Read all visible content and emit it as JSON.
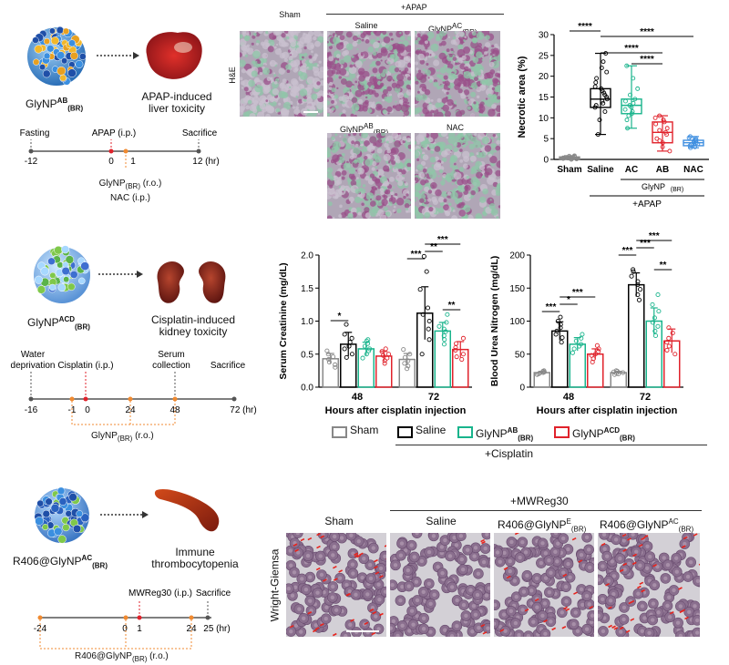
{
  "row1": {
    "np_label": "GlyNP",
    "np_sup": "AB",
    "np_sub": "(BR)",
    "organ_label_l1": "APAP-induced",
    "organ_label_l2": "liver toxicity",
    "timeline": {
      "events": [
        "Fasting",
        "APAP (i.p.)",
        "Sacrifice"
      ],
      "ticks": [
        "-12",
        "0",
        "1",
        "12 (hr)"
      ],
      "below_l1_a": "GlyNP",
      "below_l1_sub": "(BR)",
      "below_l1_b": " (r.o.)",
      "below_l2": "NAC (i.p.)"
    },
    "he": {
      "row_label": "H&E",
      "plus_label": "+APAP",
      "top_titles": [
        "Sham",
        "Saline"
      ],
      "glyac_a": "GlyNP",
      "glyac_sup": "AC",
      "glyac_sub": "(BR)",
      "glyab_a": "GlyNP",
      "glyab_sup": "AB",
      "glyab_sub": "(BR)",
      "nac": "NAC"
    },
    "chart": {
      "ylabel": "Necrotic area (%)",
      "categories": [
        "Sham",
        "Saline",
        "AC",
        "AB",
        "NAC"
      ],
      "group_label_a": "GlyNP",
      "group_label_sub": "(BR)",
      "plus_label": "+APAP",
      "significance": [
        "****",
        "****",
        "****",
        "****"
      ],
      "colors": [
        "#888888",
        "#000000",
        "#19b48c",
        "#e0222b",
        "#3f8fe0"
      ]
    }
  },
  "row2": {
    "np_label": "GlyNP",
    "np_sup": "ACD",
    "np_sub": "(BR)",
    "organ_label_l1": "Cisplatin-induced",
    "organ_label_l2": "kidney toxicity",
    "timeline": {
      "events": [
        "Water",
        "deprivation",
        "Cisplatin (i.p.)",
        "Serum",
        "collection",
        "Sacrifice"
      ],
      "ticks": [
        "-16",
        "-1",
        "0",
        "24",
        "48",
        "72 (hr)"
      ],
      "below_a": "GlyNP",
      "below_sub": "(BR)",
      "below_b": " (r.o.)"
    },
    "legend": {
      "items": [
        "Sham",
        "Saline"
      ],
      "ab_a": "GlyNP",
      "ab_sup": "AB",
      "ab_sub": "(BR)",
      "acd_a": "GlyNP",
      "acd_sup": "ACD",
      "acd_sub": "(BR)",
      "plus_label": "+Cisplatin"
    }
  },
  "row3": {
    "np_label": "R406@GlyNP",
    "np_sup": "AC",
    "np_sub": "(BR)",
    "organ_label_l1": "Immune",
    "organ_label_l2": "thrombocytopenia",
    "timeline": {
      "events": [
        "MWReg30 (i.p.)",
        "Sacrifice"
      ],
      "ticks": [
        "-24",
        "0",
        "1",
        "24",
        "25 (hr)"
      ],
      "below_a": "R406@GlyNP",
      "below_sub": "(BR)",
      "below_b": " (r.o.)"
    },
    "smear": {
      "row_label": "Wright-Giemsa",
      "plus_label": "+MWReg30",
      "titles": [
        "Sham",
        "Saline"
      ],
      "e_a": "R406@GlyNP",
      "e_sup": "E",
      "e_sub": "(BR)",
      "ac_a": "R406@GlyNP",
      "ac_sup": "AC",
      "ac_sub": "(BR)"
    }
  },
  "chart_data": [
    {
      "type": "box",
      "ylabel": "Necrotic area (%)",
      "ylim": [
        0,
        30
      ],
      "yticks": [
        0,
        5,
        10,
        15,
        20,
        25,
        30
      ],
      "categories": [
        "Sham",
        "Saline",
        "AC",
        "AB",
        "NAC"
      ],
      "boxes": [
        {
          "min": 0.0,
          "q1": 0.1,
          "median": 0.3,
          "q3": 0.6,
          "max": 0.9
        },
        {
          "min": 6.0,
          "q1": 12.5,
          "median": 14.5,
          "q3": 17.0,
          "max": 25.5
        },
        {
          "min": 7.5,
          "q1": 11.0,
          "median": 13.0,
          "q3": 14.5,
          "max": 22.5
        },
        {
          "min": 2.0,
          "q1": 4.0,
          "median": 6.5,
          "q3": 9.0,
          "max": 10.5
        },
        {
          "min": 2.8,
          "q1": 3.3,
          "median": 4.0,
          "q3": 4.6,
          "max": 5.5
        }
      ],
      "points": [
        [
          0.0,
          0.1,
          0.2,
          0.3,
          0.3,
          0.4,
          0.5,
          0.6,
          0.7,
          0.8,
          0.9,
          0.2
        ],
        [
          6.0,
          9.5,
          11.5,
          12.5,
          13.0,
          13.5,
          14.0,
          14.5,
          15.0,
          15.5,
          16.0,
          16.5,
          17.0,
          17.5,
          18.5,
          19.5,
          21.0,
          22.0,
          23.5,
          25.5
        ],
        [
          7.5,
          9.5,
          10.5,
          11.0,
          11.5,
          12.0,
          12.5,
          13.0,
          13.5,
          14.0,
          14.5,
          15.5,
          17.0,
          19.5,
          22.5
        ],
        [
          2.0,
          3.0,
          4.0,
          4.5,
          5.0,
          6.0,
          6.5,
          7.0,
          7.5,
          8.5,
          9.0,
          9.5,
          10.0,
          10.5
        ],
        [
          2.8,
          3.0,
          3.3,
          3.5,
          3.7,
          4.0,
          4.1,
          4.3,
          4.5,
          4.6,
          4.9,
          5.2,
          5.5
        ]
      ],
      "significance": [
        {
          "from": 0,
          "to": 1,
          "label": "****"
        },
        {
          "from": 1,
          "to": 4,
          "label": "****"
        },
        {
          "from": 1,
          "to": 3,
          "label": "****"
        },
        {
          "from": 2,
          "to": 3,
          "label": "****"
        }
      ]
    },
    {
      "type": "bar",
      "xlabel": "Hours after cisplatin injection",
      "ylabel": "Serum Creatinine (mg/dL)",
      "ylim": [
        0.0,
        2.0
      ],
      "yticks": [
        "0.0",
        "0.5",
        "1.0",
        "1.5",
        "2.0"
      ],
      "categories": [
        "48",
        "72"
      ],
      "series": [
        {
          "name": "Sham",
          "values": [
            0.43,
            0.42
          ],
          "errors": [
            0.08,
            0.09
          ],
          "points": [
            [
              0.3,
              0.34,
              0.38,
              0.42,
              0.46,
              0.5,
              0.55
            ],
            [
              0.28,
              0.32,
              0.36,
              0.4,
              0.45,
              0.5,
              0.57
            ]
          ]
        },
        {
          "name": "Saline",
          "values": [
            0.65,
            1.12
          ],
          "errors": [
            0.18,
            0.4
          ],
          "points": [
            [
              0.45,
              0.5,
              0.58,
              0.62,
              0.68,
              0.74,
              0.8,
              0.95
            ],
            [
              0.5,
              0.72,
              0.88,
              1.0,
              1.1,
              1.2,
              1.48,
              1.75,
              1.98
            ]
          ]
        },
        {
          "name": "GlyNP AB (BR)",
          "values": [
            0.58,
            0.85
          ],
          "errors": [
            0.1,
            0.13
          ],
          "points": [
            [
              0.44,
              0.5,
              0.55,
              0.58,
              0.62,
              0.66,
              0.7,
              0.72
            ],
            [
              0.65,
              0.72,
              0.78,
              0.84,
              0.88,
              0.92,
              0.98,
              1.1
            ]
          ]
        },
        {
          "name": "GlyNP ACD (BR)",
          "values": [
            0.47,
            0.57
          ],
          "errors": [
            0.07,
            0.12
          ],
          "points": [
            [
              0.36,
              0.4,
              0.44,
              0.48,
              0.5,
              0.54,
              0.58
            ],
            [
              0.42,
              0.46,
              0.5,
              0.56,
              0.6,
              0.66,
              0.74
            ]
          ]
        }
      ],
      "significance": [
        {
          "group": 0,
          "from": 0,
          "to": 1,
          "label": "*"
        },
        {
          "group": 1,
          "from": 0,
          "to": 1,
          "label": "***"
        },
        {
          "group": 1,
          "from": 1,
          "to": 2,
          "label": "**"
        },
        {
          "group": 1,
          "from": 1,
          "to": 3,
          "label": "***"
        },
        {
          "group": 1,
          "from": 2,
          "to": 3,
          "label": "**"
        }
      ]
    },
    {
      "type": "bar",
      "xlabel": "Hours after cisplatin injection",
      "ylabel": "Blood Urea Nitrogen (mg/dL)",
      "ylim": [
        0,
        200
      ],
      "yticks": [
        "0",
        "50",
        "100",
        "150",
        "200"
      ],
      "categories": [
        "48",
        "72"
      ],
      "series": [
        {
          "name": "Sham",
          "values": [
            22,
            22
          ],
          "errors": [
            2,
            2
          ],
          "points": [
            [
              19,
              20,
              21,
              22,
              23,
              24,
              25
            ],
            [
              19,
              20,
              21,
              22,
              23,
              24,
              25
            ]
          ]
        },
        {
          "name": "Saline",
          "values": [
            85,
            155
          ],
          "errors": [
            14,
            18
          ],
          "points": [
            [
              68,
              75,
              80,
              85,
              90,
              95,
              100,
              106
            ],
            [
              132,
              140,
              148,
              155,
              160,
              168,
              175,
              178
            ]
          ]
        },
        {
          "name": "GlyNP AB (BR)",
          "values": [
            65,
            100
          ],
          "errors": [
            10,
            20
          ],
          "points": [
            [
              52,
              58,
              62,
              65,
              70,
              74,
              80
            ],
            [
              78,
              85,
              92,
              98,
              105,
              115,
              125,
              140
            ]
          ]
        },
        {
          "name": "GlyNP ACD (BR)",
          "values": [
            50,
            70
          ],
          "errors": [
            8,
            18
          ],
          "points": [
            [
              38,
              43,
              48,
              50,
              54,
              58,
              63
            ],
            [
              50,
              56,
              62,
              68,
              74,
              82,
              90
            ]
          ]
        }
      ],
      "significance": [
        {
          "group": 0,
          "from": 0,
          "to": 1,
          "label": "***"
        },
        {
          "group": 0,
          "from": 1,
          "to": 2,
          "label": "*"
        },
        {
          "group": 0,
          "from": 1,
          "to": 3,
          "label": "***"
        },
        {
          "group": 1,
          "from": 0,
          "to": 1,
          "label": "***"
        },
        {
          "group": 1,
          "from": 1,
          "to": 2,
          "label": "***"
        },
        {
          "group": 1,
          "from": 1,
          "to": 3,
          "label": "***"
        },
        {
          "group": 1,
          "from": 2,
          "to": 3,
          "label": "**"
        }
      ]
    }
  ]
}
